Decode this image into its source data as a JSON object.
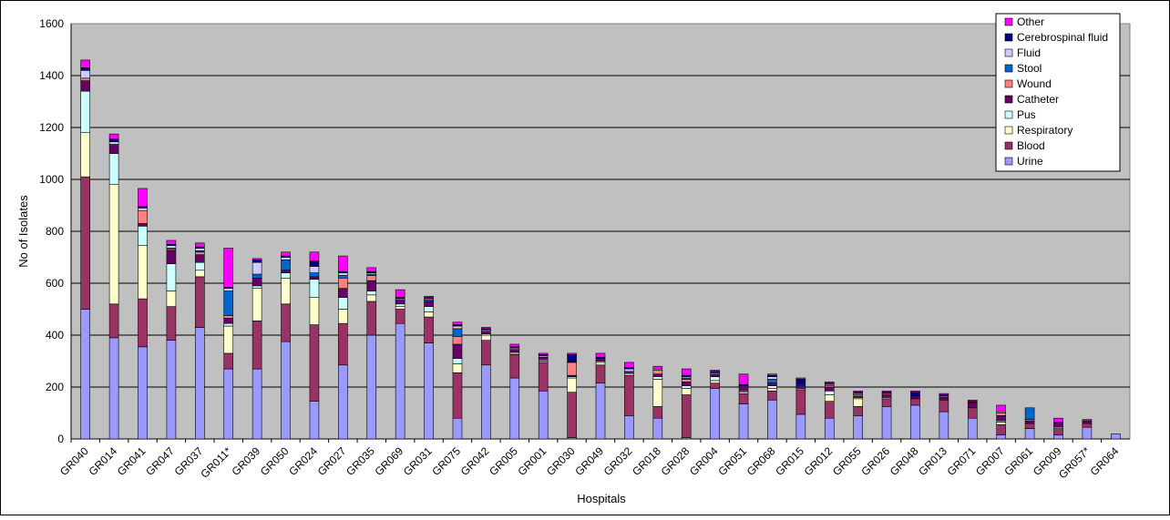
{
  "chart_data": {
    "type": "bar",
    "stacked": true,
    "xlabel": "Hospitals",
    "ylabel": "No of Isolates",
    "ylim": [
      0,
      1600
    ],
    "yticks": [
      0,
      200,
      400,
      600,
      800,
      1000,
      1200,
      1400,
      1600
    ],
    "grid": true,
    "legend_position": "top-right",
    "categories": [
      "GR040",
      "GR014",
      "GR041",
      "GR047",
      "GR037",
      "GR011*",
      "GR039",
      "GR050",
      "GR024",
      "GR027",
      "GR035",
      "GR069",
      "GR031",
      "GR075",
      "GR042",
      "GR005",
      "GR001",
      "GR030",
      "GR049",
      "GR032",
      "GR018",
      "GR028",
      "GR004",
      "GR051",
      "GR068",
      "GR015",
      "GR012",
      "GR055",
      "GR026",
      "GR048",
      "GR013",
      "GR071",
      "GR007",
      "GR061",
      "GR009",
      "GR057*",
      "GR064"
    ],
    "series": [
      {
        "name": "Urine",
        "color": "#9999ff",
        "values": [
          500,
          390,
          355,
          380,
          430,
          270,
          270,
          375,
          145,
          285,
          400,
          445,
          370,
          80,
          285,
          235,
          185,
          5,
          215,
          90,
          80,
          5,
          195,
          135,
          150,
          95,
          80,
          90,
          125,
          130,
          105,
          80,
          15,
          40,
          15,
          45,
          20
        ]
      },
      {
        "name": "Blood",
        "color": "#993366",
        "values": [
          510,
          130,
          185,
          130,
          195,
          60,
          185,
          145,
          295,
          160,
          130,
          55,
          100,
          175,
          95,
          90,
          110,
          175,
          70,
          155,
          45,
          165,
          20,
          40,
          35,
          95,
          65,
          35,
          30,
          25,
          45,
          40,
          40,
          20,
          25,
          15,
          0
        ]
      },
      {
        "name": "Respiratory",
        "color": "#ffffcc",
        "values": [
          170,
          460,
          205,
          60,
          25,
          105,
          125,
          100,
          105,
          55,
          25,
          10,
          20,
          35,
          20,
          5,
          5,
          55,
          10,
          5,
          105,
          25,
          10,
          5,
          10,
          0,
          25,
          30,
          0,
          0,
          0,
          0,
          10,
          0,
          0,
          0,
          0
        ]
      },
      {
        "name": "Pus",
        "color": "#ccffff",
        "values": [
          160,
          120,
          75,
          105,
          30,
          10,
          10,
          20,
          70,
          45,
          15,
          10,
          20,
          20,
          5,
          5,
          5,
          5,
          5,
          5,
          10,
          10,
          15,
          5,
          10,
          5,
          15,
          5,
          5,
          0,
          0,
          0,
          5,
          0,
          5,
          0,
          0
        ]
      },
      {
        "name": "Catheter",
        "color": "#660066",
        "values": [
          40,
          35,
          10,
          50,
          30,
          20,
          30,
          10,
          10,
          35,
          40,
          15,
          20,
          55,
          10,
          10,
          10,
          5,
          10,
          5,
          10,
          15,
          10,
          20,
          10,
          10,
          15,
          5,
          10,
          10,
          10,
          20,
          20,
          10,
          20,
          10,
          0
        ]
      },
      {
        "name": "Wound",
        "color": "#ff8080",
        "values": [
          10,
          0,
          50,
          5,
          10,
          10,
          0,
          0,
          0,
          40,
          20,
          0,
          0,
          30,
          0,
          0,
          0,
          50,
          0,
          0,
          15,
          10,
          0,
          0,
          0,
          0,
          5,
          5,
          5,
          0,
          5,
          0,
          10,
          5,
          0,
          0,
          0
        ]
      },
      {
        "name": "Stool",
        "color": "#0066cc",
        "values": [
          0,
          0,
          0,
          5,
          5,
          95,
          15,
          40,
          15,
          10,
          5,
          0,
          5,
          30,
          0,
          0,
          0,
          0,
          0,
          0,
          0,
          5,
          0,
          0,
          15,
          5,
          0,
          0,
          0,
          0,
          0,
          0,
          0,
          45,
          0,
          0,
          0
        ]
      },
      {
        "name": "Fluid",
        "color": "#ccccff",
        "values": [
          30,
          10,
          10,
          10,
          10,
          10,
          45,
          10,
          25,
          10,
          5,
          5,
          5,
          10,
          5,
          5,
          5,
          0,
          0,
          10,
          5,
          5,
          5,
          0,
          10,
          0,
          5,
          5,
          0,
          0,
          0,
          0,
          5,
          0,
          0,
          0,
          0
        ]
      },
      {
        "name": "Cerebrospinal fluid",
        "color": "#000080",
        "values": [
          10,
          10,
          5,
          5,
          5,
          5,
          10,
          5,
          20,
          5,
          5,
          5,
          5,
          5,
          5,
          5,
          5,
          30,
          5,
          5,
          0,
          5,
          5,
          5,
          5,
          20,
          5,
          5,
          5,
          15,
          5,
          5,
          0,
          0,
          0,
          0,
          0
        ]
      },
      {
        "name": "Other",
        "color": "#ff00ff",
        "values": [
          30,
          20,
          70,
          15,
          15,
          150,
          5,
          15,
          35,
          60,
          15,
          30,
          5,
          10,
          5,
          10,
          5,
          5,
          15,
          20,
          10,
          25,
          5,
          40,
          5,
          5,
          5,
          5,
          5,
          5,
          5,
          5,
          25,
          0,
          15,
          5,
          0
        ]
      }
    ]
  }
}
